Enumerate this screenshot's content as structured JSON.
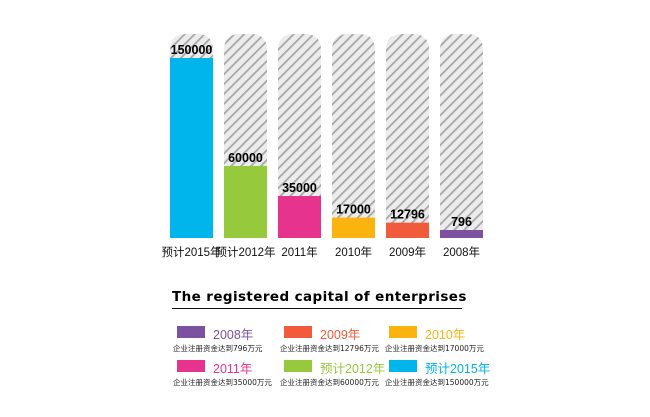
{
  "chart_data": {
    "type": "bar",
    "categories": [
      "预计2015年",
      "预计2012年",
      "2011年",
      "2010年",
      "2009年",
      "2008年"
    ],
    "values": [
      150000,
      60000,
      35000,
      17000,
      12796,
      796
    ],
    "data_labels": [
      "150000",
      "60000",
      "35000",
      "17000",
      "12796",
      "796"
    ],
    "colors": [
      "#00b4ec",
      "#97c93c",
      "#e5338e",
      "#fab30f",
      "#f15a3a",
      "#7b51a0"
    ],
    "background_style": "hatched",
    "grid": false,
    "legend_position": "bottom"
  },
  "legend": {
    "title": "The registered capital of enterprises",
    "items": [
      {
        "year": "2008年",
        "color": "#7b51a0",
        "desc": "企业注册资金达到796万元"
      },
      {
        "year": "2009年",
        "color": "#f15a3a",
        "desc": "企业注册资金达到12796万元"
      },
      {
        "year": "2010年",
        "color": "#fab30f",
        "desc": "企业注册资金达到17000万元"
      },
      {
        "year": "2011年",
        "color": "#e5338e",
        "desc": "企业注册资金达到35000万元"
      },
      {
        "year": "预计2012年",
        "color": "#97c93c",
        "desc": "企业注册资金达到60000万元"
      },
      {
        "year": "预计2015年",
        "color": "#00b4ec",
        "desc": "企业注册资金达到150000万元"
      }
    ]
  }
}
